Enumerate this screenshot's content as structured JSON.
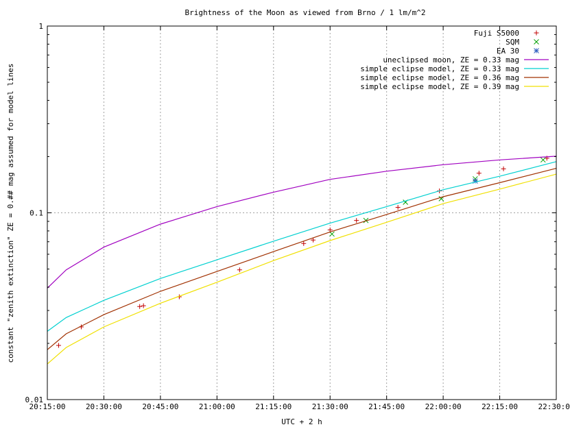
{
  "chart_data": {
    "type": "line",
    "title": "Brightness of the Moon as viewed from Brno / 1 lm/m^2",
    "xlabel": "UTC + 2 h",
    "ylabel": "constant \"zenith extinction\" ZE = 0.## mag assumed for model lines",
    "xlim": [
      "20:15:00",
      "22:30:00"
    ],
    "ylim": [
      0.01,
      1
    ],
    "yscale": "log",
    "grid": true,
    "legend_position": "top-right",
    "x_ticks": [
      "20:15:00",
      "20:30:00",
      "20:45:00",
      "21:00:00",
      "21:15:00",
      "21:30:00",
      "21:45:00",
      "22:00:00",
      "22:15:00",
      "22:30:00"
    ],
    "y_ticks": [
      {
        "label": "1",
        "value": 1
      },
      {
        "label": "0.1",
        "value": 0.1
      },
      {
        "label": "0.01",
        "value": 0.01
      }
    ],
    "series": [
      {
        "name": "Fuji S5000",
        "kind": "points",
        "marker": "+",
        "color": "#c00000",
        "x": [
          "20:18:00",
          "20:24:00",
          "20:39:30",
          "20:40:30",
          "20:50:00",
          "21:06:00",
          "21:23:00",
          "21:25:30",
          "21:30:00",
          "21:37:00",
          "21:48:00",
          "21:59:00",
          "22:09:30",
          "22:16:00",
          "22:27:30"
        ],
        "y": [
          0.0195,
          0.0245,
          0.0315,
          0.0318,
          0.0355,
          0.0495,
          0.0685,
          0.0715,
          0.081,
          0.091,
          0.107,
          0.131,
          0.163,
          0.172,
          0.196
        ]
      },
      {
        "name": "SQM",
        "kind": "points",
        "marker": "x",
        "color": "#00a000",
        "x": [
          "21:30:30",
          "21:39:30",
          "21:50:00",
          "21:59:30",
          "22:08:30",
          "22:26:30"
        ],
        "y": [
          0.077,
          0.091,
          0.114,
          0.119,
          0.152,
          0.192
        ]
      },
      {
        "name": "EA 30",
        "kind": "points",
        "marker": "*",
        "color": "#3060c0",
        "x": [
          "22:08:30"
        ],
        "y": [
          0.148
        ]
      },
      {
        "name": "uneclipsed moon, ZE = 0.33 mag",
        "kind": "line",
        "color": "#a000c0",
        "x": [
          "20:15:00",
          "20:20:00",
          "20:30:00",
          "20:45:00",
          "21:00:00",
          "21:15:00",
          "21:30:00",
          "21:45:00",
          "22:00:00",
          "22:15:00",
          "22:30:00"
        ],
        "y": [
          0.0395,
          0.0495,
          0.0655,
          0.087,
          0.108,
          0.129,
          0.151,
          0.167,
          0.181,
          0.192,
          0.201
        ]
      },
      {
        "name": "simple eclipse model, ZE = 0.33 mag",
        "kind": "line",
        "color": "#00d0d0",
        "x": [
          "20:15:00",
          "20:20:00",
          "20:30:00",
          "20:45:00",
          "21:00:00",
          "21:15:00",
          "21:30:00",
          "21:45:00",
          "22:00:00",
          "22:15:00",
          "22:30:00"
        ],
        "y": [
          0.0232,
          0.0275,
          0.034,
          0.0445,
          0.056,
          0.0705,
          0.088,
          0.108,
          0.133,
          0.157,
          0.188
        ]
      },
      {
        "name": "simple eclipse model, ZE = 0.36 mag",
        "kind": "line",
        "color": "#a03000",
        "x": [
          "20:15:00",
          "20:20:00",
          "20:30:00",
          "20:45:00",
          "21:00:00",
          "21:15:00",
          "21:30:00",
          "21:45:00",
          "22:00:00",
          "22:15:00",
          "22:30:00"
        ],
        "y": [
          0.0185,
          0.0225,
          0.0285,
          0.038,
          0.0485,
          0.062,
          0.079,
          0.098,
          0.122,
          0.145,
          0.173
        ]
      },
      {
        "name": "simple eclipse model, ZE = 0.39 mag",
        "kind": "line",
        "color": "#f0e000",
        "x": [
          "20:15:00",
          "20:20:00",
          "20:30:00",
          "20:45:00",
          "21:00:00",
          "21:15:00",
          "21:30:00",
          "21:45:00",
          "22:00:00",
          "22:15:00",
          "22:30:00"
        ],
        "y": [
          0.0155,
          0.019,
          0.0245,
          0.0328,
          0.0425,
          0.0555,
          0.071,
          0.089,
          0.112,
          0.134,
          0.161
        ]
      }
    ]
  }
}
